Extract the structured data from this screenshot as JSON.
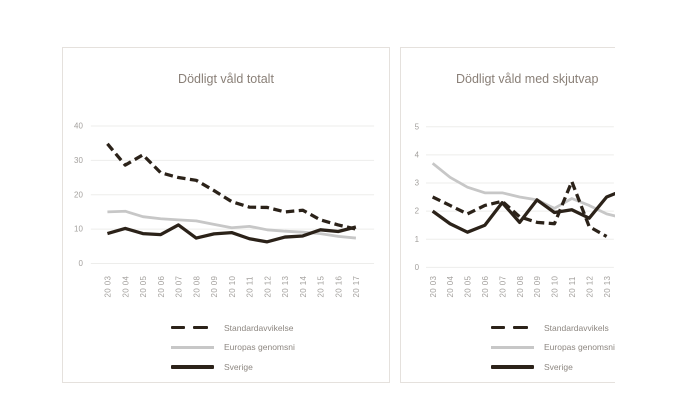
{
  "page": {
    "background": "#ffffff"
  },
  "colors": {
    "dark_series": "#2b2219",
    "gray_series": "#c7c7c7",
    "gridline": "#ededeb",
    "axis_text": "#a3a09d",
    "title_text": "#8a8078",
    "legend_text": "#8d8781",
    "panel_border": "#e5e1dd"
  },
  "chart_data": [
    {
      "type": "line",
      "title": "Dödligt våld totalt",
      "xlabel": "",
      "ylabel": "",
      "ylim": [
        0,
        40
      ],
      "yticks": [
        40,
        30,
        20,
        10,
        0
      ],
      "grid": true,
      "legend_position": "bottom",
      "categories": [
        "20 03",
        "20 04",
        "20 05",
        "20 06",
        "20 07",
        "20 08",
        "20 09",
        "20 10",
        "20 11",
        "20 12",
        "20 13",
        "20 14",
        "20 15",
        "20 16",
        "20 17"
      ],
      "series": [
        {
          "name": "Standardavvikelse",
          "style": "dashed",
          "color": "#2b2219",
          "values": [
            34.8,
            28.6,
            31.6,
            26.4,
            25.0,
            24.2,
            21.2,
            18.0,
            16.4,
            16.3,
            15.0,
            15.5,
            12.7,
            11.2,
            10.0
          ],
          "clipped_next": null
        },
        {
          "name": "Europas genomsni",
          "style": "line",
          "color": "#c7c7c7",
          "values": [
            15.0,
            15.2,
            13.6,
            13.0,
            12.7,
            12.4,
            11.4,
            10.4,
            10.8,
            9.8,
            9.4,
            9.1,
            8.7,
            7.9,
            7.4
          ],
          "clipped_next": null
        },
        {
          "name": "Sverige",
          "style": "line",
          "color": "#2b2219",
          "values": [
            8.7,
            10.2,
            8.7,
            8.4,
            11.2,
            7.4,
            8.6,
            9.0,
            7.2,
            6.3,
            7.7,
            8.0,
            9.8,
            9.3,
            10.6
          ],
          "clipped_next": null
        }
      ]
    },
    {
      "type": "line",
      "title": "Dödligt våld med skjutvap",
      "xlabel": "",
      "ylabel": "",
      "ylim": [
        0,
        5
      ],
      "yticks": [
        5,
        4,
        3,
        2,
        1,
        0
      ],
      "grid": true,
      "legend_position": "bottom",
      "categories": [
        "20 03",
        "20 04",
        "20 05",
        "20 06",
        "20 07",
        "20 08",
        "20 09",
        "20 10",
        "20 11",
        "20 12",
        "20 13"
      ],
      "series": [
        {
          "name": "Standardavvikels",
          "style": "dashed",
          "color": "#2b2219",
          "values": [
            2.5,
            2.2,
            1.9,
            2.2,
            2.35,
            1.8,
            1.6,
            1.55,
            3.05,
            1.45,
            1.1
          ],
          "clipped_next": null
        },
        {
          "name": "Europas genomsni",
          "style": "line",
          "color": "#c7c7c7",
          "values": [
            3.7,
            3.2,
            2.85,
            2.65,
            2.65,
            2.5,
            2.4,
            2.1,
            2.45,
            2.2,
            1.9
          ],
          "clipped_next": 1.75
        },
        {
          "name": "Sverige",
          "style": "line",
          "color": "#2b2219",
          "values": [
            2.0,
            1.55,
            1.25,
            1.5,
            2.3,
            1.6,
            2.4,
            1.95,
            2.05,
            1.75,
            2.5
          ],
          "clipped_next": 2.75
        }
      ]
    }
  ]
}
